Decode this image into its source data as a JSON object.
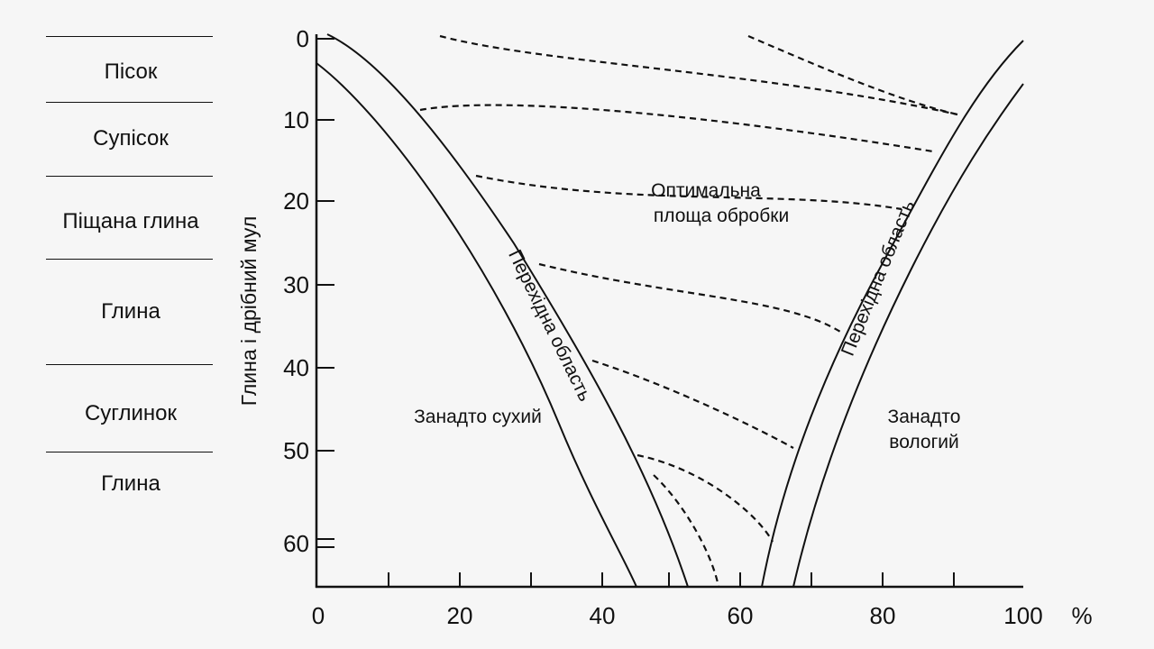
{
  "soil_types": [
    {
      "label": "Пісок"
    },
    {
      "label": "Супісок"
    },
    {
      "label": "Піщана глина"
    },
    {
      "label": "Глина"
    },
    {
      "label": "Суглинок"
    },
    {
      "label": "Глина"
    }
  ],
  "y_axis": {
    "label": "Глина і дрібний мул",
    "ticks": [
      "0",
      "10",
      "20",
      "30",
      "40",
      "50",
      "60"
    ]
  },
  "x_axis": {
    "ticks": [
      "0",
      "20",
      "40",
      "60",
      "80",
      "100"
    ],
    "unit": "%"
  },
  "regions": {
    "optimal_line1": "Оптимальна",
    "optimal_line2": "площа обробки",
    "too_dry": "Занадто сухий",
    "too_wet_line1": "Занадто",
    "too_wet_line2": "вологий",
    "transition_left": "Перехідна область",
    "transition_right": "Перехідна область"
  }
}
